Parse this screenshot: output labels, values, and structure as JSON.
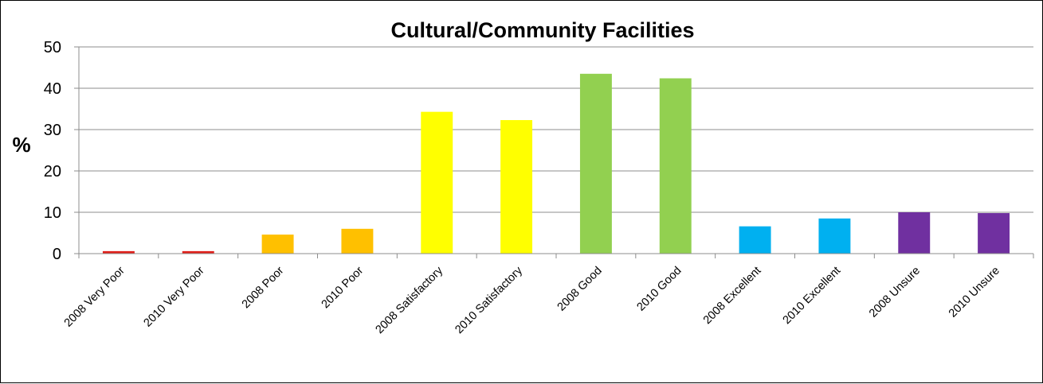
{
  "chart_data": {
    "type": "bar",
    "title": "Cultural/Community Facilities",
    "ylabel": "%",
    "xlabel": "",
    "ylim": [
      0,
      50
    ],
    "yticks": [
      0,
      10,
      20,
      30,
      40,
      50
    ],
    "grid": true,
    "legend": "none",
    "categories": [
      "2008 Very Poor",
      "2010 Very Poor",
      "2008 Poor",
      "2010 Poor",
      "2008 Satisfactory",
      "2010 Satisfactory",
      "2008 Good",
      "2010 Good",
      "2008 Excellent",
      "2010 Excellent",
      "2008 Unsure",
      "2010 Unsure"
    ],
    "values": [
      0.6,
      0.6,
      4.6,
      6.0,
      34.3,
      32.3,
      43.5,
      42.4,
      6.6,
      8.5,
      10.0,
      9.8
    ],
    "colors": [
      "#e0201b",
      "#e0201b",
      "#ffc000",
      "#ffc000",
      "#ffff00",
      "#ffff00",
      "#92d050",
      "#92d050",
      "#00b0f0",
      "#00b0f0",
      "#7030a0",
      "#7030a0"
    ]
  }
}
